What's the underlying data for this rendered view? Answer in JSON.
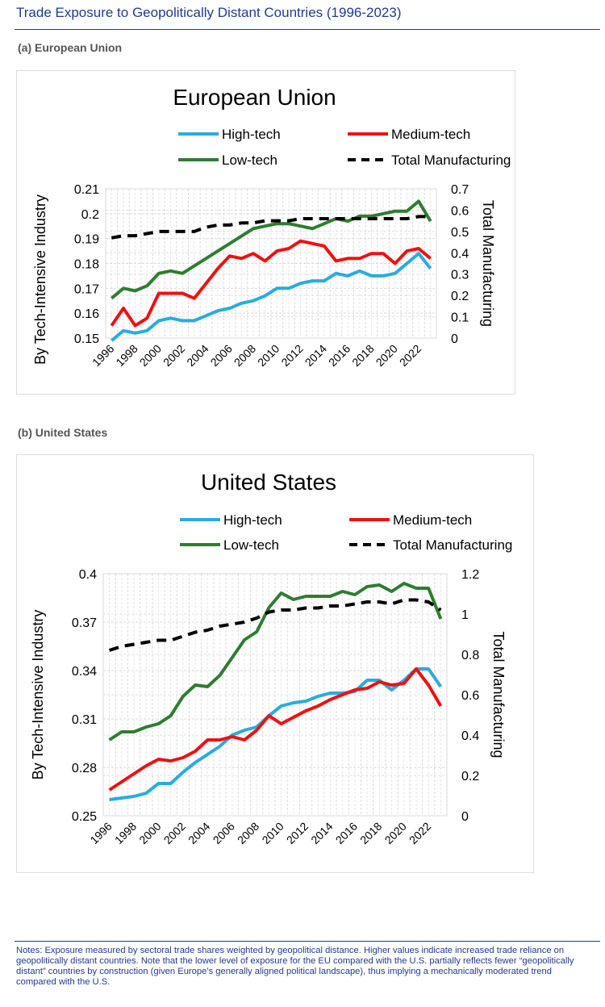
{
  "header": {
    "title": "Trade Exposure to Geopolitically Distant Countries (1996-2023)"
  },
  "panels": [
    {
      "label": "(a) European Union"
    },
    {
      "label": "(b) United States"
    }
  ],
  "notes": "Notes: Exposure measured by sectoral trade shares weighted by geopolitical distance. Higher values indicate increased trade reliance on geopolitically distant countries. Note that the lower level of exposure for the EU compared with the U.S. partially reflects fewer “geopolitically distant” countries by construction (given Europe’s generally aligned political landscape), thus implying a mechanically moderated trend compared with the U.S.",
  "colors": {
    "high": "#29abe2",
    "medium": "#ee1111",
    "low": "#2e7d32",
    "total": "#000000"
  },
  "chart_data": [
    {
      "type": "line",
      "title": "European Union",
      "ylabel": "By Tech-Intensive Industry",
      "y2label": "Total Manufacturing",
      "x": [
        1996,
        1997,
        1998,
        1999,
        2000,
        2001,
        2002,
        2003,
        2004,
        2005,
        2006,
        2007,
        2008,
        2009,
        2010,
        2011,
        2012,
        2013,
        2014,
        2015,
        2016,
        2017,
        2018,
        2019,
        2020,
        2021,
        2022,
        2023
      ],
      "xticks": [
        "1996",
        "1998",
        "2000",
        "2002",
        "2004",
        "2006",
        "2008",
        "2010",
        "2012",
        "2014",
        "2016",
        "2018",
        "2020",
        "2022"
      ],
      "ylim": [
        0.15,
        0.21
      ],
      "yticks": [
        "0.15",
        "0.16",
        "0.17",
        "0.18",
        "0.19",
        "0.2",
        "0.21"
      ],
      "y2lim": [
        0,
        0.7
      ],
      "y2ticks": [
        "0",
        "0.1",
        "0.2",
        "0.3",
        "0.4",
        "0.5",
        "0.6",
        "0.7"
      ],
      "grid": true,
      "legend": "top",
      "series": [
        {
          "key": "high",
          "name": "High-tech",
          "axis": "left",
          "values": [
            0.149,
            0.153,
            0.152,
            0.153,
            0.157,
            0.158,
            0.157,
            0.157,
            0.159,
            0.161,
            0.162,
            0.164,
            0.165,
            0.167,
            0.17,
            0.17,
            0.172,
            0.173,
            0.173,
            0.176,
            0.175,
            0.177,
            0.175,
            0.175,
            0.176,
            0.18,
            0.184,
            0.178
          ]
        },
        {
          "key": "medium",
          "name": "Medium-tech",
          "axis": "left",
          "values": [
            0.155,
            0.162,
            0.155,
            0.158,
            0.168,
            0.168,
            0.168,
            0.166,
            0.172,
            0.178,
            0.183,
            0.182,
            0.184,
            0.181,
            0.185,
            0.186,
            0.189,
            0.188,
            0.187,
            0.181,
            0.182,
            0.182,
            0.184,
            0.184,
            0.18,
            0.185,
            0.186,
            0.182
          ]
        },
        {
          "key": "low",
          "name": "Low-tech",
          "axis": "left",
          "values": [
            0.166,
            0.17,
            0.169,
            0.171,
            0.176,
            0.177,
            0.176,
            0.179,
            0.182,
            0.185,
            0.188,
            0.191,
            0.194,
            0.195,
            0.196,
            0.196,
            0.195,
            0.194,
            0.196,
            0.198,
            0.197,
            0.199,
            0.199,
            0.2,
            0.201,
            0.201,
            0.205,
            0.197
          ]
        },
        {
          "key": "total",
          "name": "Total Manufacturing",
          "axis": "right",
          "values": [
            0.47,
            0.48,
            0.48,
            0.49,
            0.5,
            0.5,
            0.5,
            0.5,
            0.52,
            0.53,
            0.53,
            0.54,
            0.54,
            0.55,
            0.55,
            0.55,
            0.56,
            0.56,
            0.56,
            0.56,
            0.56,
            0.56,
            0.56,
            0.56,
            0.56,
            0.56,
            0.57,
            0.57
          ]
        }
      ]
    },
    {
      "type": "line",
      "title": "United States",
      "ylabel": "By Tech-Intensive Industry",
      "y2label": "Total Manufacturing",
      "x": [
        1996,
        1997,
        1998,
        1999,
        2000,
        2001,
        2002,
        2003,
        2004,
        2005,
        2006,
        2007,
        2008,
        2009,
        2010,
        2011,
        2012,
        2013,
        2014,
        2015,
        2016,
        2017,
        2018,
        2019,
        2020,
        2021,
        2022,
        2023
      ],
      "xticks": [
        "1996",
        "1998",
        "2000",
        "2002",
        "2004",
        "2006",
        "2008",
        "2010",
        "2012",
        "2014",
        "2016",
        "2018",
        "2020",
        "2022"
      ],
      "ylim": [
        0.25,
        0.4
      ],
      "yticks": [
        "0.25",
        "0.28",
        "0.31",
        "0.34",
        "0.37",
        "0.4"
      ],
      "y2lim": [
        0,
        1.2
      ],
      "y2ticks": [
        "0",
        "0.2",
        "0.4",
        "0.6",
        "0.8",
        "1",
        "1.2"
      ],
      "grid": true,
      "legend": "top",
      "series": [
        {
          "key": "high",
          "name": "High-tech",
          "axis": "left",
          "values": [
            0.26,
            0.261,
            0.262,
            0.264,
            0.27,
            0.27,
            0.277,
            0.283,
            0.288,
            0.293,
            0.3,
            0.303,
            0.305,
            0.312,
            0.318,
            0.32,
            0.321,
            0.324,
            0.326,
            0.326,
            0.327,
            0.334,
            0.334,
            0.328,
            0.334,
            0.341,
            0.341,
            0.33
          ]
        },
        {
          "key": "medium",
          "name": "Medium-tech",
          "axis": "left",
          "values": [
            0.266,
            0.271,
            0.276,
            0.281,
            0.285,
            0.284,
            0.286,
            0.29,
            0.297,
            0.297,
            0.299,
            0.297,
            0.303,
            0.312,
            0.307,
            0.311,
            0.315,
            0.318,
            0.322,
            0.325,
            0.328,
            0.329,
            0.333,
            0.331,
            0.332,
            0.341,
            0.331,
            0.318
          ]
        },
        {
          "key": "low",
          "name": "Low-tech",
          "axis": "left",
          "values": [
            0.297,
            0.302,
            0.302,
            0.305,
            0.307,
            0.312,
            0.324,
            0.331,
            0.33,
            0.337,
            0.348,
            0.359,
            0.364,
            0.379,
            0.388,
            0.384,
            0.386,
            0.386,
            0.386,
            0.389,
            0.387,
            0.392,
            0.393,
            0.389,
            0.394,
            0.391,
            0.391,
            0.372
          ]
        },
        {
          "key": "total",
          "name": "Total Manufacturing",
          "axis": "right",
          "values": [
            0.82,
            0.84,
            0.85,
            0.86,
            0.87,
            0.87,
            0.89,
            0.91,
            0.92,
            0.94,
            0.95,
            0.96,
            0.98,
            1.01,
            1.02,
            1.02,
            1.03,
            1.03,
            1.04,
            1.04,
            1.05,
            1.06,
            1.06,
            1.05,
            1.07,
            1.07,
            1.06,
            1.02
          ]
        }
      ]
    }
  ]
}
